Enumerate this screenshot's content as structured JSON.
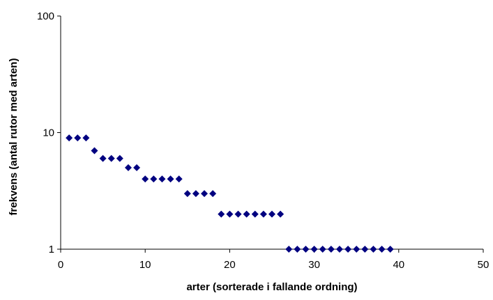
{
  "chart_data": {
    "type": "scatter",
    "title": "",
    "xlabel": "arter (sorterade i fallande ordning)",
    "ylabel": "frekvens (antal rutor med arten)",
    "xlim": [
      0,
      50
    ],
    "ylim": [
      1,
      100
    ],
    "y_scale": "log",
    "x_ticks": [
      0,
      10,
      20,
      30,
      40,
      50
    ],
    "x_tick_labels": [
      "0",
      "10",
      "20",
      "30",
      "40",
      "50"
    ],
    "y_ticks": [
      1,
      10,
      100
    ],
    "y_tick_labels": [
      "1",
      "10",
      "100"
    ],
    "grid": false,
    "legend": "none",
    "marker": "diamond",
    "marker_color": "#000080",
    "series": [
      {
        "x": [
          1,
          2,
          3,
          4,
          5,
          6,
          7,
          8,
          9,
          10,
          11,
          12,
          13,
          14,
          15,
          16,
          17,
          18,
          19,
          20,
          21,
          22,
          23,
          24,
          25,
          26,
          27,
          28,
          29,
          30,
          31,
          32,
          33,
          34,
          35,
          36,
          37,
          38,
          39
        ],
        "y": [
          9,
          9,
          9,
          7,
          6,
          6,
          6,
          5,
          5,
          4,
          4,
          4,
          4,
          4,
          3,
          3,
          3,
          3,
          2,
          2,
          2,
          2,
          2,
          2,
          2,
          2,
          1,
          1,
          1,
          1,
          1,
          1,
          1,
          1,
          1,
          1,
          1,
          1,
          1
        ]
      }
    ]
  }
}
